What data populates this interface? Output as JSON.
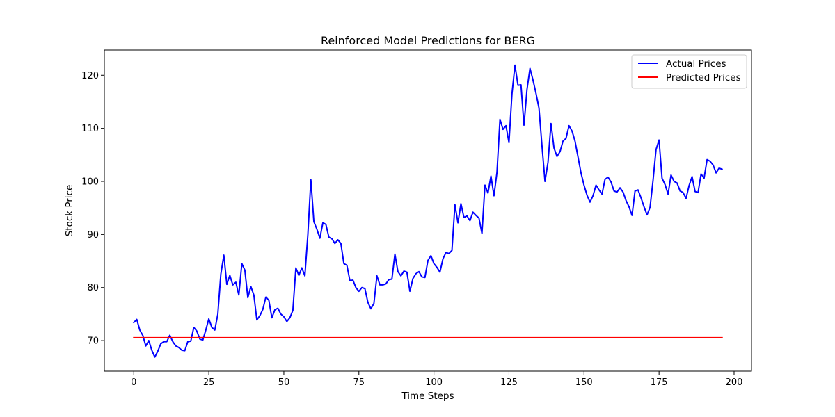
{
  "chart_data": {
    "type": "line",
    "title": "Reinforced Model Predictions for BERG",
    "xlabel": "Time Steps",
    "ylabel": "Stock Price",
    "xlim": [
      -9.8,
      205.8
    ],
    "ylim": [
      64.25,
      124.75
    ],
    "xticks": [
      0,
      25,
      50,
      75,
      100,
      125,
      150,
      175,
      200
    ],
    "yticks": [
      70,
      80,
      90,
      100,
      110,
      120
    ],
    "grid": false,
    "legend_position": "top-right",
    "series": [
      {
        "name": "Actual Prices",
        "color": "#0000ff",
        "x": [
          0,
          1,
          2,
          3,
          4,
          5,
          6,
          7,
          8,
          9,
          10,
          11,
          12,
          13,
          14,
          15,
          16,
          17,
          18,
          19,
          20,
          21,
          22,
          23,
          24,
          25,
          26,
          27,
          28,
          29,
          30,
          31,
          32,
          33,
          34,
          35,
          36,
          37,
          38,
          39,
          40,
          41,
          42,
          43,
          44,
          45,
          46,
          47,
          48,
          49,
          50,
          51,
          52,
          53,
          54,
          55,
          56,
          57,
          58,
          59,
          60,
          61,
          62,
          63,
          64,
          65,
          66,
          67,
          68,
          69,
          70,
          71,
          72,
          73,
          74,
          75,
          76,
          77,
          78,
          79,
          80,
          81,
          82,
          83,
          84,
          85,
          86,
          87,
          88,
          89,
          90,
          91,
          92,
          93,
          94,
          95,
          96,
          97,
          98,
          99,
          100,
          101,
          102,
          103,
          104,
          105,
          106,
          107,
          108,
          109,
          110,
          111,
          112,
          113,
          114,
          115,
          116,
          117,
          118,
          119,
          120,
          121,
          122,
          123,
          124,
          125,
          126,
          127,
          128,
          129,
          130,
          131,
          132,
          133,
          134,
          135,
          136,
          137,
          138,
          139,
          140,
          141,
          142,
          143,
          144,
          145,
          146,
          147,
          148,
          149,
          150,
          151,
          152,
          153,
          154,
          155,
          156,
          157,
          158,
          159,
          160,
          161,
          162,
          163,
          164,
          165,
          166,
          167,
          168,
          169,
          170,
          171,
          172,
          173,
          174,
          175,
          176,
          177,
          178,
          179,
          180,
          181,
          182,
          183,
          184,
          185,
          186,
          187,
          188,
          189,
          190,
          191,
          192,
          193,
          194,
          195,
          196
        ],
        "y": [
          73.4,
          74.0,
          72.0,
          71.0,
          69.0,
          70.0,
          68.2,
          66.9,
          68.0,
          69.4,
          69.8,
          69.8,
          71.0,
          69.8,
          69.0,
          68.7,
          68.2,
          68.1,
          69.8,
          69.9,
          72.5,
          71.8,
          70.3,
          70.1,
          72.0,
          74.1,
          72.5,
          72.0,
          75.0,
          82.5,
          86.1,
          80.6,
          82.3,
          80.5,
          81.0,
          78.6,
          84.5,
          83.3,
          78.1,
          80.2,
          78.6,
          73.9,
          74.7,
          75.9,
          78.2,
          77.6,
          74.3,
          75.8,
          76.1,
          75.0,
          74.5,
          73.6,
          74.3,
          75.7,
          83.7,
          82.3,
          83.7,
          82.2,
          90.0,
          100.3,
          92.4,
          91.0,
          89.3,
          92.2,
          91.9,
          89.5,
          89.2,
          88.3,
          89.0,
          88.3,
          84.5,
          84.2,
          81.3,
          81.4,
          80.0,
          79.3,
          80.0,
          79.8,
          77.2,
          76.0,
          77.0,
          82.2,
          80.5,
          80.5,
          80.7,
          81.5,
          81.6,
          86.3,
          83.0,
          82.2,
          83.1,
          82.9,
          79.3,
          81.7,
          82.6,
          83.0,
          82.0,
          81.9,
          85.1,
          86.0,
          84.5,
          83.8,
          82.9,
          85.4,
          86.6,
          86.4,
          87.0,
          95.6,
          92.2,
          95.8,
          93.2,
          93.5,
          92.6,
          94.2,
          93.6,
          93.1,
          90.2,
          99.3,
          97.8,
          101.0,
          97.3,
          101.7,
          111.7,
          109.8,
          110.5,
          107.3,
          116.5,
          121.9,
          118.1,
          118.2,
          110.6,
          117.3,
          121.3,
          119.1,
          116.6,
          113.8,
          106.7,
          100.0,
          103.6,
          110.9,
          106.3,
          104.7,
          105.6,
          107.6,
          108.1,
          110.5,
          109.5,
          107.6,
          104.6,
          101.6,
          99.3,
          97.4,
          96.1,
          97.3,
          99.3,
          98.4,
          97.6,
          100.4,
          100.8,
          99.9,
          98.2,
          98.0,
          98.8,
          98.0,
          96.4,
          95.2,
          93.6,
          98.2,
          98.4,
          96.9,
          95.2,
          93.7,
          95.1,
          100.2,
          106.0,
          107.8,
          100.6,
          99.4,
          97.6,
          101.2,
          100.0,
          99.7,
          98.2,
          97.9,
          96.8,
          99.2,
          100.9,
          98.1,
          97.9,
          101.4,
          100.6,
          104.1,
          103.8,
          103.1,
          101.6,
          102.5,
          102.3
        ]
      },
      {
        "name": "Predicted Prices",
        "color": "#ff0000",
        "x": [
          0,
          196
        ],
        "y": [
          70.55,
          70.55
        ]
      }
    ]
  }
}
